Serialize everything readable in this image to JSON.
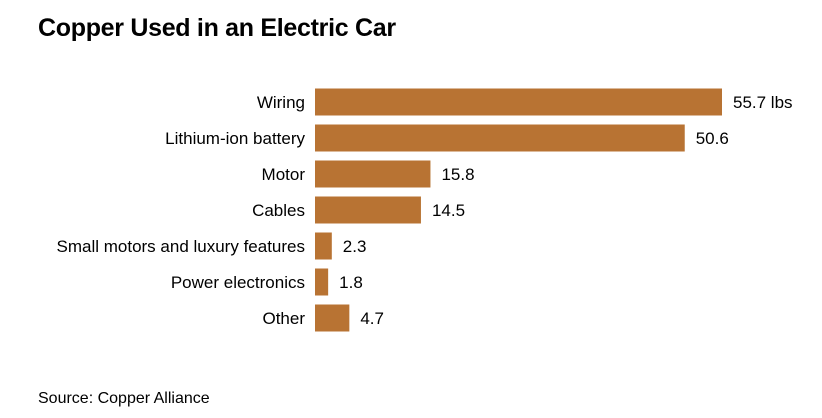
{
  "chart_data": {
    "type": "bar",
    "orientation": "horizontal",
    "title": "Copper Used in an Electric Car",
    "categories": [
      "Wiring",
      "Lithium-ion battery",
      "Motor",
      "Cables",
      "Small motors and luxury features",
      "Power electronics",
      "Other"
    ],
    "values": [
      55.7,
      50.6,
      15.8,
      14.5,
      2.3,
      1.8,
      4.7
    ],
    "value_labels": [
      "55.7 lbs",
      "50.6",
      "15.8",
      "14.5",
      "2.3",
      "1.8",
      "4.7"
    ],
    "unit": "lbs",
    "xlim": [
      0,
      55.7
    ],
    "grid": false,
    "bar_color": "#b87333",
    "source": "Source: Copper Alliance"
  }
}
